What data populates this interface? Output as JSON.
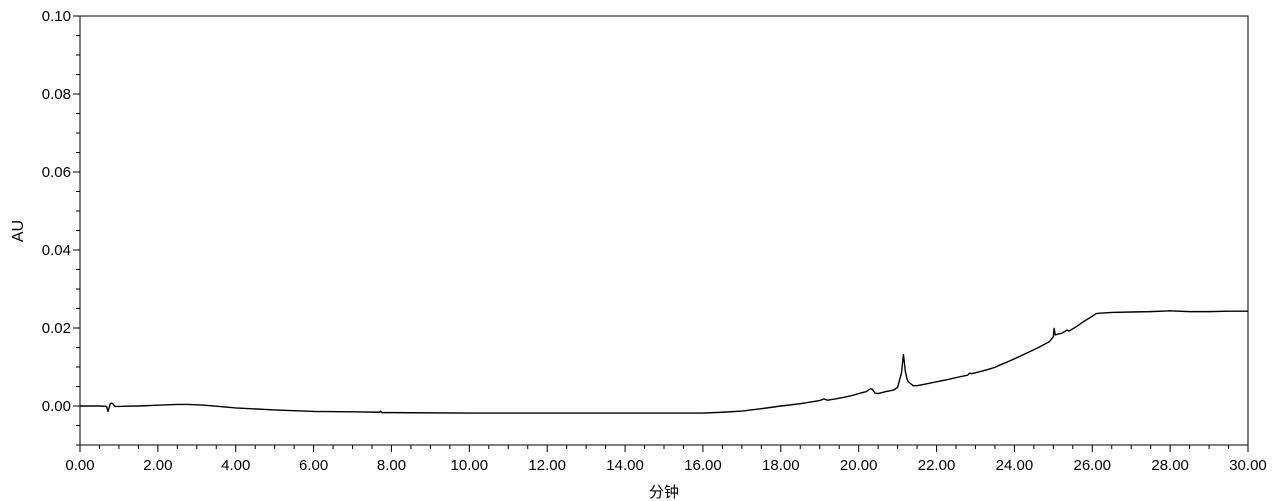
{
  "chart_data": {
    "type": "line",
    "ylabel": "AU",
    "xlabel": "分钟",
    "xlim": [
      0,
      30
    ],
    "ylim": [
      -0.01,
      0.1
    ],
    "grid": false,
    "x_ticks": [
      "0.00",
      "2.00",
      "4.00",
      "6.00",
      "8.00",
      "10.00",
      "12.00",
      "14.00",
      "16.00",
      "18.00",
      "20.00",
      "22.00",
      "24.00",
      "26.00",
      "28.00",
      "30.00"
    ],
    "y_ticks": [
      "0.00",
      "0.02",
      "0.04",
      "0.06",
      "0.08",
      "0.10"
    ],
    "series": [
      {
        "color": "#000000",
        "x": [
          0.0,
          0.5,
          0.68,
          0.72,
          0.78,
          0.83,
          0.9,
          1.0,
          1.5,
          2.0,
          2.5,
          2.8,
          3.2,
          4.0,
          5.0,
          6.0,
          7.0,
          7.7,
          7.72,
          7.75,
          8.0,
          10.0,
          12.0,
          14.0,
          16.0,
          16.5,
          17.0,
          17.5,
          18.0,
          18.5,
          19.0,
          19.1,
          19.2,
          19.4,
          19.6,
          19.8,
          20.0,
          20.2,
          20.3,
          20.35,
          20.42,
          20.5,
          20.7,
          20.9,
          21.0,
          21.1,
          21.15,
          21.2,
          21.25,
          21.3,
          21.4,
          21.5,
          21.7,
          22.0,
          22.3,
          22.6,
          22.8,
          22.85,
          22.9,
          23.0,
          23.3,
          23.5,
          23.6,
          23.8,
          24.0,
          24.3,
          24.6,
          24.9,
          25.0,
          25.02,
          25.05,
          25.1,
          25.2,
          25.3,
          25.35,
          25.4,
          25.6,
          25.8,
          26.0,
          26.1,
          26.2,
          26.5,
          27.0,
          27.5,
          28.0,
          28.5,
          29.0,
          29.5,
          30.0
        ],
        "y": [
          0.0,
          0.0,
          -0.0001,
          -0.0014,
          0.0007,
          0.0007,
          -0.0001,
          -0.0001,
          0.0,
          0.0002,
          0.0004,
          0.0004,
          0.0002,
          -0.0005,
          -0.001,
          -0.0014,
          -0.0015,
          -0.0016,
          -0.0013,
          -0.0017,
          -0.0017,
          -0.0018,
          -0.0018,
          -0.0018,
          -0.0018,
          -0.0016,
          -0.0013,
          -0.0007,
          0.0,
          0.0006,
          0.0014,
          0.0018,
          0.0015,
          0.0018,
          0.0022,
          0.0026,
          0.0032,
          0.0037,
          0.0044,
          0.0043,
          0.0033,
          0.0032,
          0.0037,
          0.0041,
          0.0048,
          0.0085,
          0.0132,
          0.0088,
          0.0066,
          0.006,
          0.0052,
          0.0052,
          0.0056,
          0.0062,
          0.0068,
          0.0075,
          0.0079,
          0.0084,
          0.0083,
          0.0085,
          0.0093,
          0.0099,
          0.0104,
          0.0112,
          0.0121,
          0.0135,
          0.0149,
          0.0165,
          0.0178,
          0.0199,
          0.0182,
          0.0184,
          0.0186,
          0.0191,
          0.0195,
          0.0192,
          0.0204,
          0.0218,
          0.023,
          0.0237,
          0.0238,
          0.024,
          0.0241,
          0.0242,
          0.0244,
          0.0242,
          0.0242,
          0.0243,
          0.0243
        ]
      }
    ]
  }
}
